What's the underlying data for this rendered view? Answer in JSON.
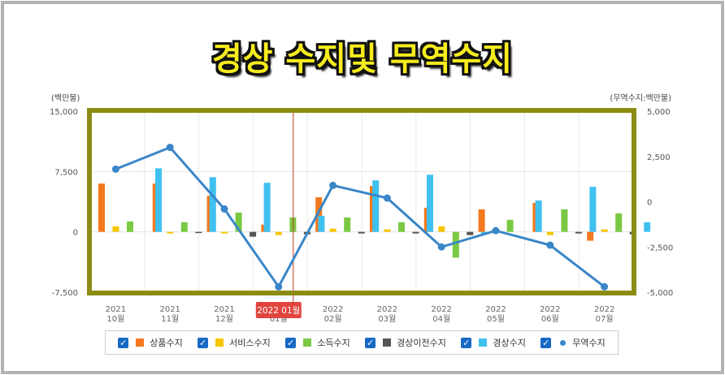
{
  "title": "경상 수지및 무역수지",
  "chart_data": {
    "type": "bar",
    "left_axis_label": "(백만불)",
    "right_axis_label": "(무역수지:백만불)",
    "left_ylim": [
      -7500,
      15000
    ],
    "right_ylim": [
      -5000,
      5000
    ],
    "left_ticks": [
      "15,000",
      "7,500",
      "0",
      "-7,500"
    ],
    "right_ticks": [
      "5,000",
      "2,500",
      "0",
      "-2,500",
      "-5,000"
    ],
    "categories": [
      {
        "year": "2021",
        "month": "10월"
      },
      {
        "year": "2021",
        "month": "11월"
      },
      {
        "year": "2021",
        "month": "12월"
      },
      {
        "year": "2022",
        "month": "01월"
      },
      {
        "year": "2022",
        "month": "02월"
      },
      {
        "year": "2022",
        "month": "03월"
      },
      {
        "year": "2022",
        "month": "04월"
      },
      {
        "year": "2022",
        "month": "05월"
      },
      {
        "year": "2022",
        "month": "06월"
      },
      {
        "year": "2022",
        "month": "07월"
      }
    ],
    "highlight_label": "2022 01월",
    "highlight_index": 3,
    "series": [
      {
        "name": "상품수지",
        "color": "#f5781e",
        "axis": "left",
        "values": [
          6000,
          6000,
          4500,
          900,
          4300,
          5700,
          3000,
          2800,
          3600,
          -1100
        ]
      },
      {
        "name": "서비스수지",
        "color": "#f7c600",
        "axis": "left",
        "values": [
          700,
          -200,
          -200,
          -400,
          400,
          300,
          700,
          0,
          -400,
          300
        ]
      },
      {
        "name": "소득수지",
        "color": "#7ac943",
        "axis": "left",
        "values": [
          1300,
          1200,
          2400,
          1800,
          1800,
          1200,
          -3200,
          1500,
          2800,
          2300
        ]
      },
      {
        "name": "경상이전수지",
        "color": "#555555",
        "axis": "left",
        "values": [
          0,
          -100,
          -600,
          -300,
          -200,
          -200,
          -400,
          0,
          -200,
          -300
        ]
      },
      {
        "name": "경상수지",
        "color": "#3fc1f0",
        "axis": "left",
        "values": [
          7900,
          6800,
          6100,
          2000,
          6400,
          7100,
          -300,
          3900,
          5600,
          1200
        ]
      },
      {
        "name": "무역수지",
        "color": "#3a86c8",
        "axis": "right",
        "type": "line",
        "values": [
          1800,
          3000,
          -400,
          -4700,
          900,
          200,
          -2500,
          -1600,
          -2400,
          -4700
        ]
      }
    ]
  }
}
